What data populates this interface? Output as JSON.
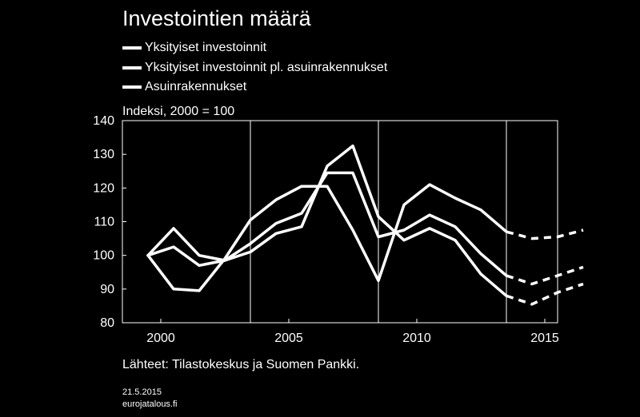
{
  "title": "Investointien määrä",
  "unit_label": "Indeksi, 2000 = 100",
  "source": "Lähteet: Tilastokeskus ja Suomen Pankki.",
  "date": "21.5.2015",
  "site": "eurojatalous.fi",
  "colors": {
    "background": "#000000",
    "foreground": "#ffffff"
  },
  "chart_data": {
    "type": "line",
    "title": "Investointien määrä",
    "ylabel": "Indeksi, 2000 = 100",
    "xlim": [
      1999,
      2016
    ],
    "ylim": [
      80,
      140
    ],
    "yticks": [
      80,
      90,
      100,
      110,
      120,
      130,
      140
    ],
    "xticks": [
      2000,
      2005,
      2010,
      2015
    ],
    "legend_position": "top-left",
    "forecast_from": 2014,
    "x": [
      2000,
      2001,
      2002,
      2003,
      2004,
      2005,
      2006,
      2007,
      2008,
      2009,
      2010,
      2011,
      2012,
      2013,
      2014,
      2015,
      2016,
      2017
    ],
    "series": [
      {
        "name": "Yksityiset investoinnit",
        "values": [
          100,
          102.5,
          97,
          98.5,
          103.5,
          109.5,
          112.5,
          124.5,
          124.5,
          105.5,
          107.5,
          112,
          108.5,
          100.5,
          94,
          91.5,
          94,
          96.5
        ]
      },
      {
        "name": "Yksityiset investoinnit pl. asuinrakennukset",
        "values": [
          100,
          108,
          100,
          98.5,
          101,
          106.5,
          108.5,
          126.5,
          132.5,
          111.5,
          104.5,
          108,
          104.5,
          94.5,
          88,
          85.5,
          89,
          91.5
        ]
      },
      {
        "name": "Asuinrakennukset",
        "values": [
          100,
          90,
          89.5,
          99,
          110.5,
          116.5,
          120.5,
          120.5,
          107.5,
          92.5,
          115,
          121,
          117,
          113.5,
          107,
          105,
          105.5,
          107.5
        ]
      }
    ]
  }
}
